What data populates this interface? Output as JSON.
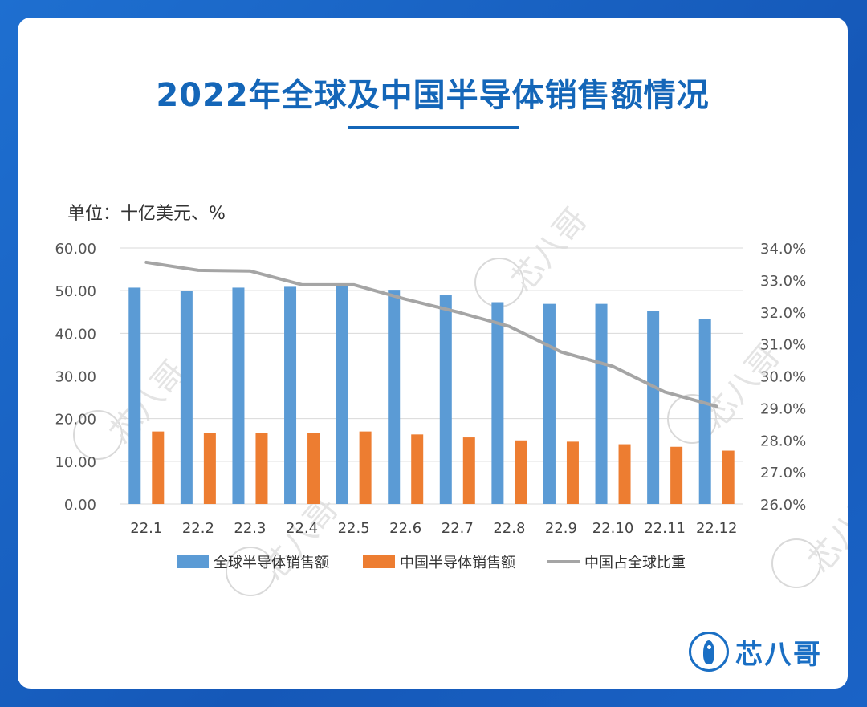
{
  "title": "2022年全球及中国半导体销售额情况",
  "unit_label": "单位：十亿美元、%",
  "watermark_text": "芯八哥",
  "brand": {
    "name": "芯八哥",
    "color": "#1a6fc4",
    "icon": "bird-logo-icon"
  },
  "chart_data": {
    "type": "bar",
    "categories": [
      "22.1",
      "22.2",
      "22.3",
      "22.4",
      "22.5",
      "22.6",
      "22.7",
      "22.8",
      "22.9",
      "22.10",
      "22.11",
      "22.12"
    ],
    "series": [
      {
        "name": "全球半导体销售额",
        "kind": "bar",
        "axis": "left",
        "color": "#5b9bd5",
        "values": [
          50.7,
          50.0,
          50.7,
          50.9,
          51.0,
          50.2,
          48.9,
          47.3,
          46.9,
          46.9,
          45.3,
          43.3
        ]
      },
      {
        "name": "中国半导体销售额",
        "kind": "bar",
        "axis": "left",
        "color": "#ed7d31",
        "values": [
          17.0,
          16.7,
          16.7,
          16.7,
          17.0,
          16.3,
          15.6,
          14.9,
          14.6,
          14.0,
          13.4,
          12.5
        ]
      },
      {
        "name": "中国占全球比重",
        "kind": "line",
        "axis": "right",
        "color": "#a5a5a5",
        "values": [
          33.55,
          33.3,
          33.28,
          32.85,
          32.85,
          32.4,
          32.0,
          31.55,
          30.75,
          30.3,
          29.5,
          29.05
        ]
      }
    ],
    "y_left": {
      "min": 0,
      "max": 60,
      "step": 10,
      "tick_labels": [
        "0.00",
        "10.00",
        "20.00",
        "30.00",
        "40.00",
        "50.00",
        "60.00"
      ]
    },
    "y_right": {
      "min": 26,
      "max": 34,
      "step": 1,
      "tick_labels": [
        "26.0%",
        "27.0%",
        "28.0%",
        "29.0%",
        "30.0%",
        "31.0%",
        "32.0%",
        "33.0%",
        "34.0%"
      ]
    },
    "grid": true,
    "legend_position": "bottom"
  }
}
